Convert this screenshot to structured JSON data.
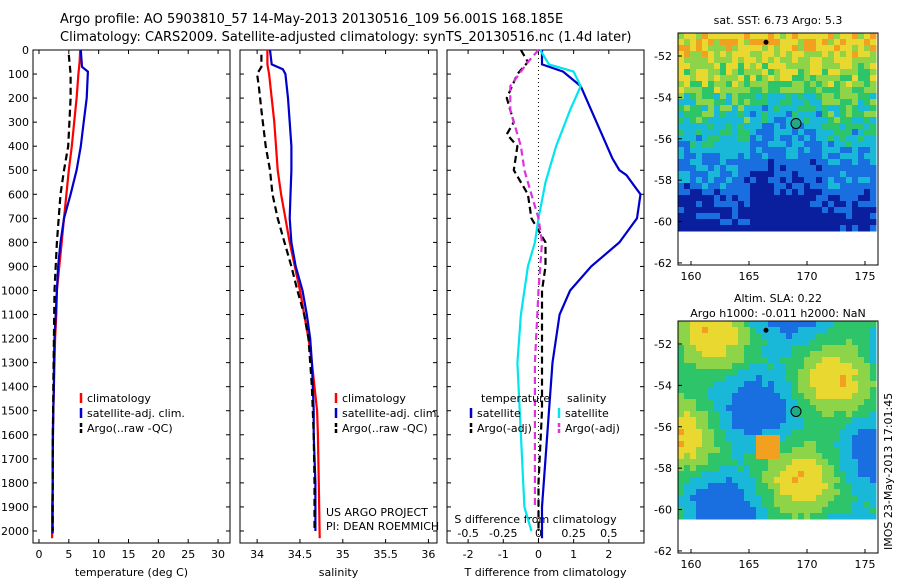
{
  "header": {
    "line1": "Argo profile: AO 5903810_57 14-May-2013 20130516_109 56.001S 168.185E",
    "line2": "Climatology: CARS2009. Satellite-adjusted climatology: synTS_20130516.nc (1.4d later)"
  },
  "colors": {
    "climatology": "#ff0000",
    "satellite": "#0000cc",
    "argo": "#000000",
    "satellite_diff_s": "#00e5ee",
    "argo_diff_s": "#e030e0"
  },
  "chart_data": [
    {
      "type": "line",
      "xlabel": "temperature (deg C)",
      "xlim": [
        -1,
        32
      ],
      "xticks": [
        0,
        5,
        10,
        15,
        20,
        25,
        30
      ],
      "ylim": [
        2050,
        0
      ],
      "yticks": [
        0,
        100,
        200,
        300,
        400,
        500,
        600,
        700,
        800,
        900,
        1000,
        1100,
        1200,
        1300,
        1400,
        1500,
        1600,
        1700,
        1800,
        1900,
        2000
      ],
      "legend": [
        "climatology",
        "satellite-adj. clim.",
        "Argo(..raw -QC)"
      ],
      "series": [
        {
          "name": "climatology",
          "style": "solid",
          "color": "#ff0000",
          "x": [
            6.9,
            6.8,
            6.6,
            6.3,
            5.9,
            5.5,
            5.0,
            4.6,
            4.2,
            3.8,
            3.4,
            3.0,
            2.9,
            2.7,
            2.6,
            2.5,
            2.4,
            2.3,
            2.3,
            2.2,
            2.2
          ],
          "y": [
            0,
            50,
            100,
            200,
            300,
            400,
            500,
            600,
            700,
            800,
            900,
            1000,
            1100,
            1200,
            1300,
            1400,
            1500,
            1600,
            1800,
            1900,
            2030
          ]
        },
        {
          "name": "satellite-adj. clim.",
          "style": "solid",
          "color": "#0000cc",
          "x": [
            7.0,
            7.2,
            8.2,
            8.0,
            7.5,
            7.0,
            6.3,
            5.3,
            4.2,
            3.6,
            3.2,
            3.0,
            2.8,
            2.6,
            2.5,
            2.5,
            2.4,
            2.3,
            2.3,
            2.3
          ],
          "y": [
            0,
            70,
            90,
            200,
            300,
            400,
            500,
            600,
            700,
            800,
            900,
            1000,
            1100,
            1200,
            1300,
            1400,
            1500,
            1700,
            1900,
            2010
          ]
        },
        {
          "name": "Argo(..raw -QC)",
          "style": "dashed",
          "color": "#000000",
          "x": [
            5.0,
            5.3,
            5.3,
            5.1,
            4.9,
            4.2,
            3.6,
            3.3,
            3.0,
            2.8,
            2.6,
            2.5,
            2.4,
            2.3,
            2.3
          ],
          "y": [
            20,
            100,
            200,
            300,
            400,
            500,
            600,
            700,
            800,
            900,
            1000,
            1200,
            1400,
            1700,
            2000
          ]
        }
      ]
    },
    {
      "type": "line",
      "xlabel": "salinity",
      "xlim": [
        33.8,
        36.1
      ],
      "xticks": [
        34,
        34.5,
        35,
        35.5,
        36
      ],
      "ylim": [
        2050,
        0
      ],
      "legend": [
        "climatology",
        "satellite-adj. clim.",
        "Argo(..raw -QC)"
      ],
      "annotation": [
        "US ARGO PROJECT",
        "PI: DEAN ROEMMICH"
      ],
      "series": [
        {
          "name": "climatology",
          "style": "solid",
          "color": "#ff0000",
          "x": [
            34.12,
            34.12,
            34.14,
            34.17,
            34.2,
            34.22,
            34.24,
            34.28,
            34.33,
            34.38,
            34.44,
            34.5,
            34.55,
            34.6,
            34.64,
            34.67,
            34.7,
            34.71,
            34.72,
            34.73
          ],
          "y": [
            0,
            60,
            100,
            200,
            300,
            400,
            500,
            600,
            700,
            800,
            900,
            1000,
            1100,
            1200,
            1300,
            1400,
            1500,
            1600,
            1800,
            2030
          ]
        },
        {
          "name": "satellite-adj. clim.",
          "style": "solid",
          "color": "#0000cc",
          "x": [
            34.15,
            34.17,
            34.3,
            34.33,
            34.36,
            34.38,
            34.4,
            34.4,
            34.39,
            34.38,
            34.4,
            34.45,
            34.53,
            34.58,
            34.62,
            34.64,
            34.66,
            34.66,
            34.68,
            34.68
          ],
          "y": [
            0,
            60,
            80,
            100,
            200,
            300,
            400,
            500,
            600,
            700,
            800,
            900,
            1000,
            1100,
            1200,
            1300,
            1500,
            1600,
            1800,
            2000
          ]
        },
        {
          "name": "Argo(..raw -QC)",
          "style": "dashed",
          "color": "#000000",
          "x": [
            34.05,
            34.05,
            34.0,
            34.02,
            34.05,
            34.1,
            34.15,
            34.18,
            34.24,
            34.32,
            34.4,
            34.47,
            34.55,
            34.6,
            34.64,
            34.66,
            34.67,
            34.67
          ],
          "y": [
            20,
            70,
            100,
            150,
            250,
            400,
            500,
            600,
            700,
            800,
            900,
            1000,
            1100,
            1200,
            1400,
            1600,
            1800,
            2000
          ]
        }
      ]
    },
    {
      "type": "line",
      "xlabel": "T difference from climatology",
      "xlabel_top": "S difference from climatology",
      "xlim": [
        -2.6,
        3.0
      ],
      "xticks": [
        -2,
        -1,
        0,
        1,
        2
      ],
      "xticks_top": [
        -0.5,
        -0.25,
        0,
        0.25,
        0.5
      ],
      "ylim": [
        2050,
        0
      ],
      "legend_left_title": "temperature",
      "legend_right_title": "salinity",
      "legend_left": [
        "satellite",
        "Argo(-adj)"
      ],
      "legend_right": [
        "satellite",
        "Argo(-adj)"
      ],
      "series": [
        {
          "name": "temperature satellite",
          "style": "solid",
          "color": "#0000cc",
          "x": [
            0.1,
            0.1,
            0.7,
            1.2,
            1.5,
            1.8,
            2.1,
            2.3,
            2.5,
            2.7,
            2.9,
            2.8,
            2.3,
            1.5,
            0.9,
            0.6,
            0.4,
            0.3,
            0.2,
            0.1,
            0.1
          ],
          "y": [
            0,
            60,
            90,
            150,
            250,
            350,
            450,
            500,
            520,
            560,
            600,
            700,
            800,
            900,
            1000,
            1100,
            1300,
            1500,
            1700,
            1900,
            2030
          ]
        },
        {
          "name": "temperature Argo(-adj)",
          "style": "dashed",
          "color": "#000000",
          "x": [
            -0.5,
            -0.3,
            -0.6,
            -0.9,
            -0.7,
            -0.9,
            -0.6,
            -0.7,
            -0.3,
            -0.2,
            0.0,
            0.2,
            0.2,
            0.1,
            0.1,
            0.1,
            0.0,
            0.0
          ],
          "y": [
            0,
            50,
            100,
            200,
            300,
            350,
            400,
            500,
            600,
            700,
            750,
            800,
            900,
            1000,
            1200,
            1500,
            1800,
            2000
          ]
        },
        {
          "name": "salinity satellite",
          "style": "solid",
          "color": "#00e5ee",
          "x": [
            0.05,
            0.3,
            1.0,
            1.2,
            0.9,
            0.5,
            0.2,
            0.0,
            -0.1,
            -0.3,
            -0.4,
            -0.5,
            -0.6,
            -0.5,
            -0.4,
            -0.2
          ],
          "y": [
            0,
            60,
            90,
            150,
            250,
            400,
            550,
            700,
            800,
            900,
            1000,
            1100,
            1300,
            1600,
            1900,
            2000
          ]
        },
        {
          "name": "salinity Argo(-adj)",
          "style": "dashed",
          "color": "#e030e0",
          "x": [
            0.0,
            -0.3,
            -0.8,
            -0.8,
            -0.5,
            -0.4,
            -0.2,
            0.0,
            0.1,
            0.0,
            -0.1,
            -0.1,
            -0.1
          ],
          "y": [
            0,
            50,
            150,
            250,
            400,
            500,
            600,
            700,
            800,
            1000,
            1300,
            1600,
            1900
          ]
        }
      ]
    }
  ],
  "maps": [
    {
      "title": "sat. SST: 6.73 Argo: 5.3",
      "xticks": [
        "160",
        "165",
        "170",
        "175"
      ],
      "yticks": [
        "-52",
        "-54",
        "-56",
        "-58",
        "-60",
        "-62"
      ]
    },
    {
      "title_line1": "Altim. SLA: 0.22",
      "title_line2": "Argo h1000: -0.011 h2000: NaN",
      "xticks": [
        "160",
        "165",
        "170",
        "175"
      ],
      "yticks": [
        "-52",
        "-54",
        "-56",
        "-58",
        "-60",
        "-62"
      ]
    }
  ],
  "footer": {
    "vertical_text": "IMOS 23-May-2013 17:01:45"
  }
}
